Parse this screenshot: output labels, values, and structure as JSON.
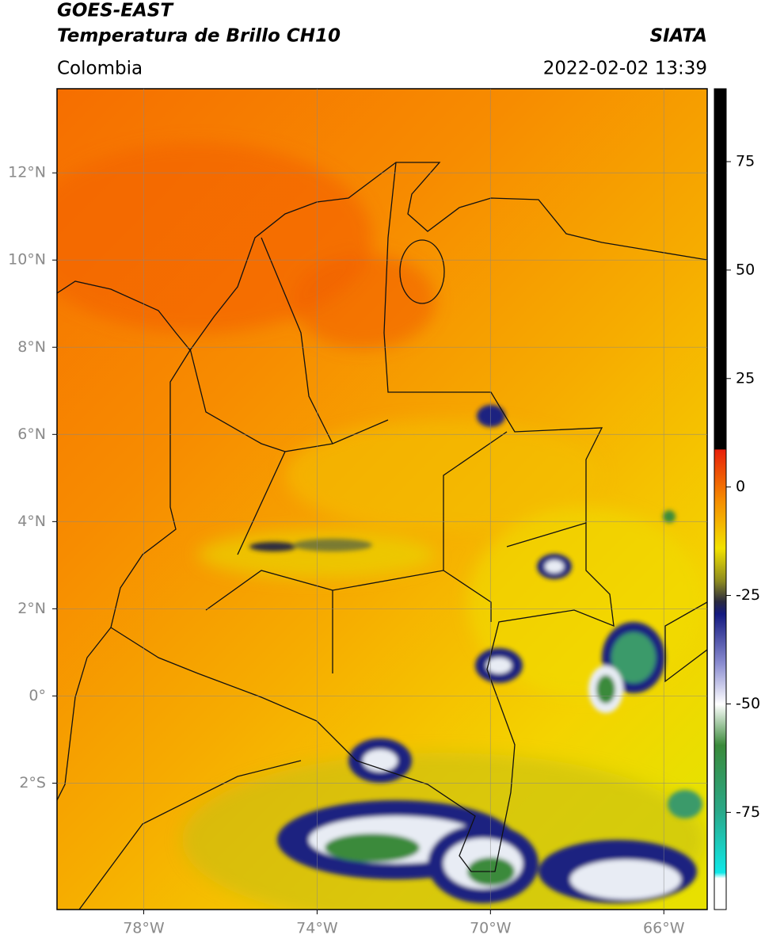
{
  "header": {
    "satellite": "GOES-EAST",
    "product": "Temperatura de Brillo CH10",
    "region": "Colombia",
    "source": "SIATA",
    "timestamp": "2022-02-02 13:39"
  },
  "map": {
    "lonlim": [
      -80,
      -65
    ],
    "latlim": [
      -4.9,
      13.93
    ],
    "xticks": [
      {
        "value": -78,
        "label": "78°W"
      },
      {
        "value": -74,
        "label": "74°W"
      },
      {
        "value": -70,
        "label": "70°W"
      },
      {
        "value": -66,
        "label": "66°W"
      }
    ],
    "yticks": [
      {
        "value": 12,
        "label": "12°N"
      },
      {
        "value": 10,
        "label": "10°N"
      },
      {
        "value": 8,
        "label": "8°N"
      },
      {
        "value": 6,
        "label": "6°N"
      },
      {
        "value": 4,
        "label": "4°N"
      },
      {
        "value": 2,
        "label": "2°N"
      },
      {
        "value": 0,
        "label": "0°"
      },
      {
        "value": -2,
        "label": "2°S"
      }
    ]
  },
  "colorbar": {
    "lim": [
      -97.4,
      91.8
    ],
    "ticks": [
      75,
      50,
      25,
      0,
      -25,
      -50,
      -75
    ]
  }
}
